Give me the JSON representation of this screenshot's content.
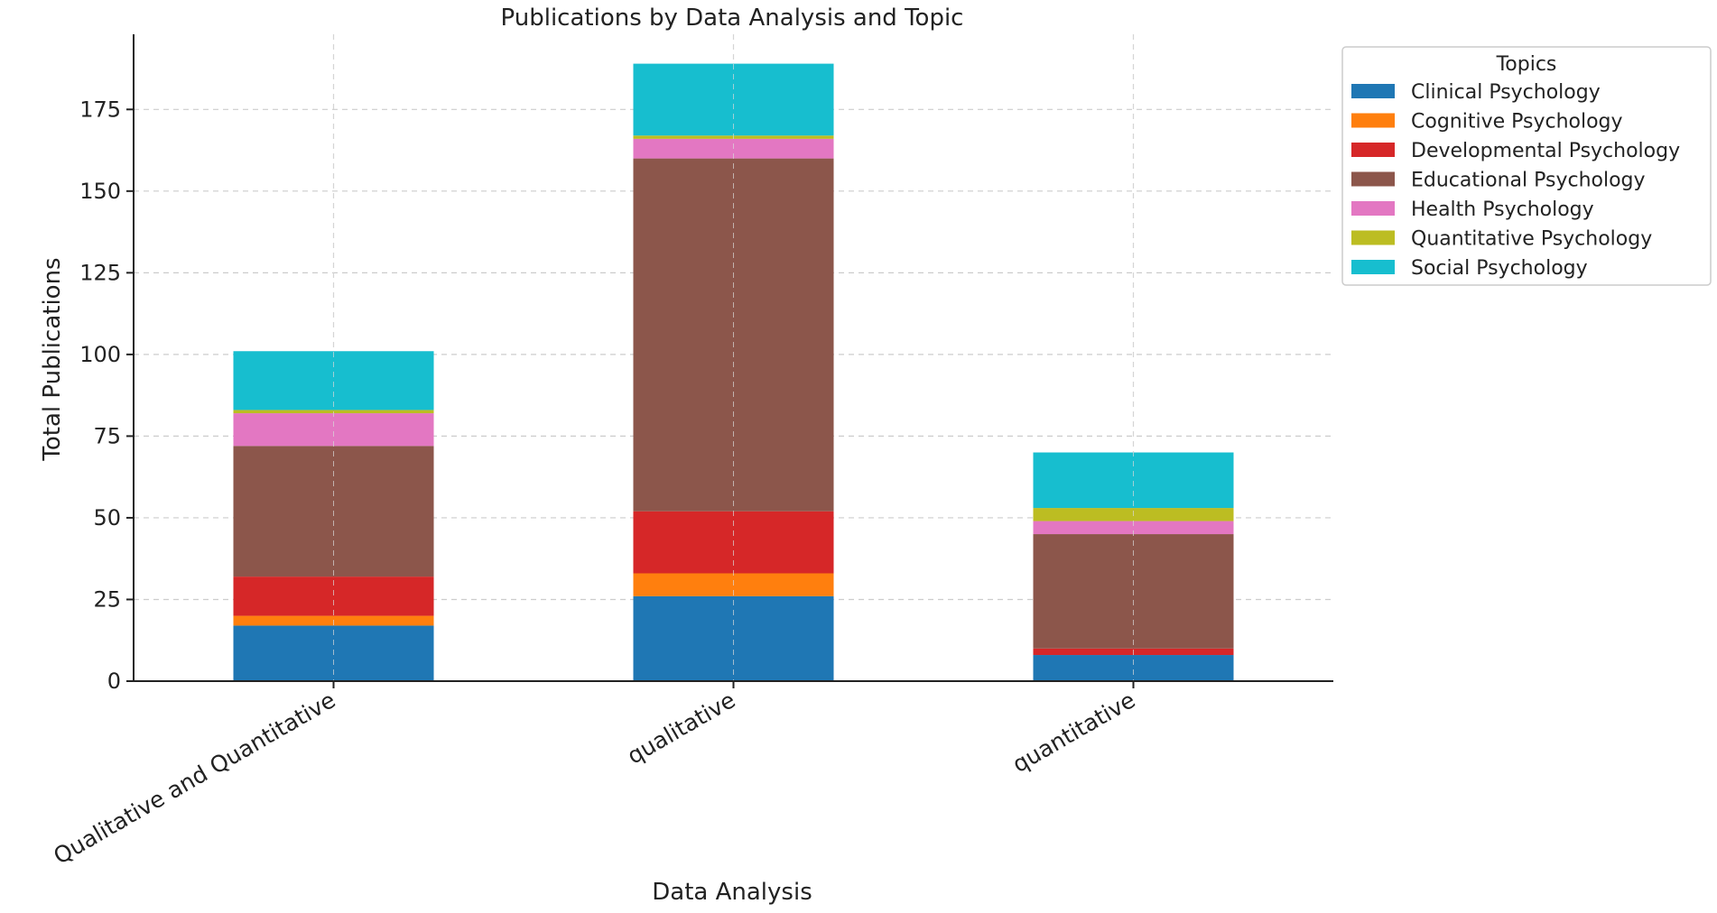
{
  "chart_data": {
    "type": "bar",
    "stacked": true,
    "title": "Publications by Data Analysis and Topic",
    "xlabel": "Data Analysis",
    "ylabel": "Total Publications",
    "categories": [
      "Qualitative and Quantitative",
      "qualitative",
      "quantitative"
    ],
    "yticks": [
      0,
      25,
      50,
      75,
      100,
      125,
      150,
      175
    ],
    "ylim": [
      0,
      198
    ],
    "grid": true,
    "legend": {
      "title": "Topics",
      "position": "top-right (outside plot)"
    },
    "series": [
      {
        "name": "Clinical Psychology",
        "color": "#1f77b4",
        "values": [
          17,
          26,
          8
        ]
      },
      {
        "name": "Cognitive Psychology",
        "color": "#ff7f0e",
        "values": [
          3,
          7,
          0
        ]
      },
      {
        "name": "Developmental Psychology",
        "color": "#d62728",
        "values": [
          12,
          19,
          2
        ]
      },
      {
        "name": "Educational Psychology",
        "color": "#8c564b",
        "values": [
          40,
          108,
          35
        ]
      },
      {
        "name": "Health Psychology",
        "color": "#e377c2",
        "values": [
          10,
          6,
          4
        ]
      },
      {
        "name": "Quantitative Psychology",
        "color": "#bcbd22",
        "values": [
          1,
          1,
          4
        ]
      },
      {
        "name": "Social Psychology",
        "color": "#17becf",
        "values": [
          18,
          22,
          17
        ]
      }
    ]
  }
}
